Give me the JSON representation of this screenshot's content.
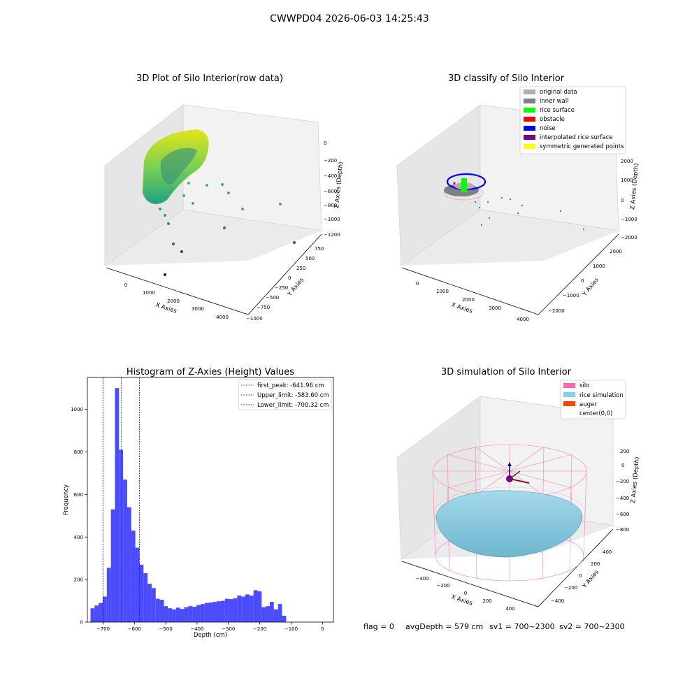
{
  "suptitle": "CWWPD04 2026-06-03 14:25:43",
  "panels": {
    "raw": {
      "title": "3D Plot of Silo Interior(row data)",
      "xlabel": "X Axies",
      "ylabel": "Y Axies",
      "zlabel": "Z Axies (Depth)",
      "xticks": [
        "0",
        "1000",
        "2000",
        "3000",
        "4000"
      ],
      "yticks": [
        "750",
        "500",
        "250",
        "0",
        "−250",
        "−500",
        "−750",
        "−1000"
      ],
      "zticks": [
        "0",
        "−200",
        "−400",
        "−600",
        "−800",
        "−1000",
        "−1200"
      ]
    },
    "classify": {
      "title": "3D classify of Silo Interior",
      "xlabel": "X Axies",
      "ylabel": "Y Axies",
      "zlabel": "Z Axies (Depth)",
      "xticks": [
        "0",
        "1000",
        "2000",
        "3000",
        "4000"
      ],
      "yticks": [
        "2000",
        "1000",
        "0",
        "−1000",
        "−2000"
      ],
      "zticks": [
        "2000",
        "1000",
        "0",
        "−1000",
        "−2000"
      ],
      "legend": [
        {
          "label": "original data",
          "color": "#b0b0b0"
        },
        {
          "label": "inner wall",
          "color": "#808080"
        },
        {
          "label": "rice surface",
          "color": "#00ff00"
        },
        {
          "label": "obstacle",
          "color": "#ff0000"
        },
        {
          "label": "noise",
          "color": "#0000ff"
        },
        {
          "label": "interpolated rice surface",
          "color": "#800080"
        },
        {
          "label": "symmetric generated points",
          "color": "#ffff00"
        }
      ]
    },
    "simulation": {
      "title": "3D simulation of Silo Interior",
      "xlabel": "X Axies",
      "ylabel": "Y Axies",
      "zlabel": "Z Axies (Depth)",
      "xticks": [
        "−400",
        "−200",
        "0",
        "200",
        "400"
      ],
      "yticks": [
        "400",
        "200",
        "0",
        "−200",
        "−400"
      ],
      "zticks": [
        "200",
        "0",
        "−200",
        "−400",
        "−600",
        "−800"
      ],
      "legend": [
        {
          "label": "silo",
          "color": "#ff69b4"
        },
        {
          "label": "rice simulation",
          "color": "#87ceeb"
        },
        {
          "label": "auger",
          "color": "#ff4500"
        },
        {
          "label": "center(0,0)",
          "color": "#ffffff"
        }
      ]
    }
  },
  "chart_data": {
    "type": "bar",
    "title": "Histogram of Z-Axies (Height) Values",
    "xlabel": "Depth (cm)",
    "ylabel": "Frequency",
    "xlim": [
      -750,
      35
    ],
    "ylim": [
      0,
      1150
    ],
    "xticks": [
      -700,
      -600,
      -500,
      -400,
      -300,
      -200,
      -100,
      0
    ],
    "yticks": [
      0,
      200,
      400,
      600,
      800,
      1000
    ],
    "bar_color": "#0000ff",
    "bins_start": -740,
    "bin_width": 13,
    "values": [
      65,
      78,
      90,
      120,
      255,
      530,
      1100,
      810,
      670,
      540,
      430,
      350,
      270,
      230,
      180,
      160,
      110,
      105,
      75,
      65,
      60,
      68,
      62,
      70,
      75,
      72,
      80,
      85,
      90,
      92,
      95,
      98,
      100,
      110,
      108,
      112,
      125,
      120,
      130,
      125,
      150,
      145,
      70,
      75,
      95,
      60,
      85,
      30
    ],
    "vlines": [
      {
        "label": "first_peak: -641.96 cm",
        "x": -641.96,
        "color": "#ff0000"
      },
      {
        "label": "Upper_limit: -583.60 cm",
        "x": -583.6,
        "color": "#0000ff"
      },
      {
        "label": "Lower_limit: -700.32 cm",
        "x": -700.32,
        "color": "#0000ff"
      }
    ],
    "legend_position": "upper right"
  },
  "footer": {
    "flag": "flag = 0",
    "avg_depth": "avgDepth = 579 cm",
    "sv1": "sv1 = 700~2300",
    "sv2": "sv2 = 700~2300"
  }
}
